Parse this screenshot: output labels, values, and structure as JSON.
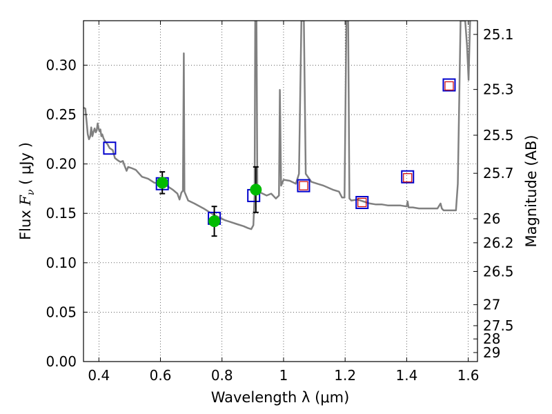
{
  "chart_data": {
    "type": "scatter",
    "xlabel": "Wavelength  λ (μm)",
    "ylabel": "Flux  F_ν  ( μJy )",
    "ylabel_parts": {
      "prefix": "Flux  ",
      "symbol": "F",
      "subscript": "ν",
      "suffix": "  ( μJy )"
    },
    "y2label": "Magnitude (AB)",
    "xlim": [
      0.35,
      1.63
    ],
    "ylim": [
      0.0,
      0.345
    ],
    "grid": true,
    "x_ticks": [
      0.4,
      0.6,
      0.8,
      1.0,
      1.2,
      1.4,
      1.6
    ],
    "x_tick_labels": [
      "0.4",
      "0.6",
      "0.8",
      "1",
      "1.2",
      "1.4",
      "1.6"
    ],
    "y_ticks": [
      0.0,
      0.05,
      0.1,
      0.15,
      0.2,
      0.25,
      0.3
    ],
    "y_tick_labels": [
      "0.00",
      "0.05",
      "0.10",
      "0.15",
      "0.20",
      "0.25",
      "0.30"
    ],
    "y2_ticks": [
      25.1,
      25.3,
      25.5,
      25.7,
      26,
      26.2,
      26.5,
      27,
      27.5,
      28,
      29
    ],
    "y2_tick_labels": [
      "25.1",
      "25.3",
      "25.5",
      "25.7",
      "26",
      "26.2",
      "26.5",
      "27",
      "27.5",
      "28",
      "29"
    ],
    "series": [
      {
        "kind": "model_sed_line",
        "color": "#808080",
        "points": [
          [
            0.35,
            0.257
          ],
          [
            0.356,
            0.256
          ],
          [
            0.36,
            0.243
          ],
          [
            0.364,
            0.23
          ],
          [
            0.368,
            0.225
          ],
          [
            0.372,
            0.228
          ],
          [
            0.375,
            0.237
          ],
          [
            0.379,
            0.228
          ],
          [
            0.383,
            0.233
          ],
          [
            0.386,
            0.236
          ],
          [
            0.39,
            0.232
          ],
          [
            0.393,
            0.234
          ],
          [
            0.396,
            0.241
          ],
          [
            0.399,
            0.236
          ],
          [
            0.402,
            0.233
          ],
          [
            0.405,
            0.235
          ],
          [
            0.408,
            0.228
          ],
          [
            0.411,
            0.23
          ],
          [
            0.415,
            0.226
          ],
          [
            0.42,
            0.223
          ],
          [
            0.428,
            0.22
          ],
          [
            0.435,
            0.216
          ],
          [
            0.445,
            0.214
          ],
          [
            0.452,
            0.206
          ],
          [
            0.46,
            0.204
          ],
          [
            0.47,
            0.202
          ],
          [
            0.478,
            0.203
          ],
          [
            0.485,
            0.197
          ],
          [
            0.49,
            0.193
          ],
          [
            0.495,
            0.197
          ],
          [
            0.505,
            0.196
          ],
          [
            0.52,
            0.194
          ],
          [
            0.54,
            0.187
          ],
          [
            0.56,
            0.185
          ],
          [
            0.58,
            0.181
          ],
          [
            0.6,
            0.18
          ],
          [
            0.62,
            0.178
          ],
          [
            0.64,
            0.174
          ],
          [
            0.655,
            0.17
          ],
          [
            0.662,
            0.164
          ],
          [
            0.668,
            0.171
          ],
          [
            0.673,
            0.173
          ],
          [
            0.676,
            0.312
          ],
          [
            0.678,
            0.172
          ],
          [
            0.69,
            0.163
          ],
          [
            0.71,
            0.16
          ],
          [
            0.74,
            0.155
          ],
          [
            0.77,
            0.149
          ],
          [
            0.79,
            0.146
          ],
          [
            0.81,
            0.143
          ],
          [
            0.83,
            0.141
          ],
          [
            0.85,
            0.139
          ],
          [
            0.87,
            0.137
          ],
          [
            0.885,
            0.135
          ],
          [
            0.895,
            0.134
          ],
          [
            0.902,
            0.138
          ],
          [
            0.906,
            0.168
          ],
          [
            0.908,
            0.345
          ],
          [
            0.912,
            0.345
          ],
          [
            0.915,
            0.17
          ],
          [
            0.925,
            0.171
          ],
          [
            0.945,
            0.168
          ],
          [
            0.96,
            0.17
          ],
          [
            0.975,
            0.165
          ],
          [
            0.985,
            0.168
          ],
          [
            0.988,
            0.275
          ],
          [
            0.992,
            0.178
          ],
          [
            1.0,
            0.184
          ],
          [
            1.02,
            0.183
          ],
          [
            1.04,
            0.18
          ],
          [
            1.05,
            0.19
          ],
          [
            1.058,
            0.345
          ],
          [
            1.066,
            0.345
          ],
          [
            1.072,
            0.19
          ],
          [
            1.09,
            0.182
          ],
          [
            1.11,
            0.18
          ],
          [
            1.13,
            0.178
          ],
          [
            1.16,
            0.174
          ],
          [
            1.18,
            0.172
          ],
          [
            1.19,
            0.166
          ],
          [
            1.198,
            0.166
          ],
          [
            1.204,
            0.345
          ],
          [
            1.21,
            0.345
          ],
          [
            1.214,
            0.165
          ],
          [
            1.22,
            0.163
          ],
          [
            1.24,
            0.164
          ],
          [
            1.26,
            0.162
          ],
          [
            1.28,
            0.16
          ],
          [
            1.3,
            0.159
          ],
          [
            1.32,
            0.159
          ],
          [
            1.34,
            0.158
          ],
          [
            1.36,
            0.158
          ],
          [
            1.38,
            0.158
          ],
          [
            1.4,
            0.157
          ],
          [
            1.403,
            0.162
          ],
          [
            1.406,
            0.156
          ],
          [
            1.42,
            0.156
          ],
          [
            1.44,
            0.155
          ],
          [
            1.46,
            0.155
          ],
          [
            1.48,
            0.155
          ],
          [
            1.5,
            0.155
          ],
          [
            1.51,
            0.16
          ],
          [
            1.514,
            0.155
          ],
          [
            1.52,
            0.153
          ],
          [
            1.54,
            0.153
          ],
          [
            1.56,
            0.153
          ],
          [
            1.566,
            0.18
          ],
          [
            1.575,
            0.345
          ],
          [
            1.59,
            0.345
          ],
          [
            1.596,
            0.32
          ],
          [
            1.601,
            0.285
          ],
          [
            1.606,
            0.345
          ]
        ]
      },
      {
        "kind": "model_photometry",
        "marker": "square",
        "color": "#0000cc",
        "x": [
          0.435,
          0.606,
          0.775,
          0.903,
          1.065,
          1.255,
          1.403,
          1.538
        ],
        "y": [
          0.216,
          0.18,
          0.145,
          0.168,
          0.178,
          0.161,
          0.187,
          0.28
        ]
      },
      {
        "kind": "upper_limit_photometry",
        "marker": "small-square",
        "color": "#cc0000",
        "x": [
          1.065,
          1.255,
          1.403,
          1.538
        ],
        "y": [
          0.178,
          0.161,
          0.186,
          0.279
        ]
      },
      {
        "kind": "observed_photometry",
        "marker": "circle",
        "color": "#00bb00",
        "x": [
          0.606,
          0.775,
          0.91
        ],
        "y": [
          0.181,
          0.142,
          0.174
        ],
        "yerr": [
          0.011,
          0.015,
          0.023
        ]
      }
    ]
  }
}
